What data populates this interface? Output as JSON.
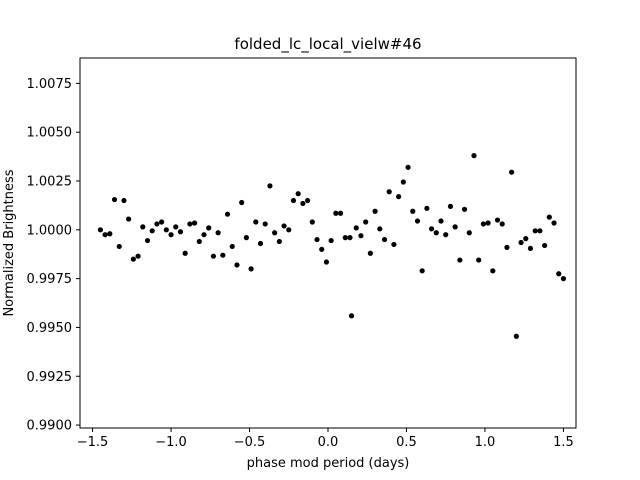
{
  "chart_data": {
    "type": "scatter",
    "title": "folded_lc_local_vielw#46",
    "xlabel": "phase mod period (days)",
    "ylabel": "Normalized Brightness",
    "xlim": [
      -1.58,
      1.58
    ],
    "ylim": [
      0.98985,
      1.0088
    ],
    "xticks": [
      -1.5,
      -1.0,
      -0.5,
      0.0,
      0.5,
      1.0,
      1.5
    ],
    "xtick_labels": [
      "−1.5",
      "−1.0",
      "−0.5",
      "0.0",
      "0.5",
      "1.0",
      "1.5"
    ],
    "yticks": [
      0.99,
      0.9925,
      0.995,
      0.9975,
      1.0,
      1.0025,
      1.005,
      1.0075
    ],
    "ytick_labels": [
      "0.9900",
      "0.9925",
      "0.9950",
      "0.9975",
      "1.0000",
      "1.0025",
      "1.0050",
      "1.0075"
    ],
    "grid": false,
    "marker_color": "#000000",
    "series": [
      {
        "points": [
          [
            -1.45,
            1.0
          ],
          [
            -1.42,
            0.99975
          ],
          [
            -1.39,
            0.9998
          ],
          [
            -1.36,
            1.00155
          ],
          [
            -1.33,
            0.99915
          ],
          [
            -1.3,
            1.0015
          ],
          [
            -1.27,
            1.00055
          ],
          [
            -1.24,
            0.9985
          ],
          [
            -1.21,
            0.99865
          ],
          [
            -1.18,
            1.00015
          ],
          [
            -1.15,
            0.99945
          ],
          [
            -1.12,
            0.99995
          ],
          [
            -1.09,
            1.0003
          ],
          [
            -1.06,
            1.0004
          ],
          [
            -1.03,
            1.0
          ],
          [
            -1.0,
            0.99975
          ],
          [
            -0.97,
            1.00015
          ],
          [
            -0.94,
            0.9999
          ],
          [
            -0.91,
            0.9988
          ],
          [
            -0.88,
            1.0003
          ],
          [
            -0.85,
            1.00035
          ],
          [
            -0.82,
            0.9994
          ],
          [
            -0.79,
            0.99975
          ],
          [
            -0.76,
            1.0001
          ],
          [
            -0.73,
            0.99865
          ],
          [
            -0.7,
            0.99985
          ],
          [
            -0.67,
            0.9987
          ],
          [
            -0.64,
            1.0008
          ],
          [
            -0.61,
            0.99915
          ],
          [
            -0.58,
            0.9982
          ],
          [
            -0.55,
            1.0014
          ],
          [
            -0.52,
            0.9996
          ],
          [
            -0.49,
            0.998
          ],
          [
            -0.46,
            1.0004
          ],
          [
            -0.43,
            0.9993
          ],
          [
            -0.4,
            1.0003
          ],
          [
            -0.37,
            1.00225
          ],
          [
            -0.34,
            0.99985
          ],
          [
            -0.31,
            0.9994
          ],
          [
            -0.28,
            1.0002
          ],
          [
            -0.25,
            1.0
          ],
          [
            -0.22,
            1.0015
          ],
          [
            -0.19,
            1.00185
          ],
          [
            -0.16,
            1.00135
          ],
          [
            -0.13,
            1.0015
          ],
          [
            -0.1,
            1.0004
          ],
          [
            -0.07,
            0.9995
          ],
          [
            -0.04,
            0.999
          ],
          [
            -0.01,
            0.99835
          ],
          [
            0.02,
            0.99945
          ],
          [
            0.05,
            1.00085
          ],
          [
            0.08,
            1.00085
          ],
          [
            0.11,
            0.9996
          ],
          [
            0.14,
            0.9996
          ],
          [
            0.15,
            0.9956
          ],
          [
            0.18,
            1.0001
          ],
          [
            0.21,
            0.9997
          ],
          [
            0.24,
            1.0004
          ],
          [
            0.27,
            0.9988
          ],
          [
            0.3,
            1.00095
          ],
          [
            0.33,
            1.00005
          ],
          [
            0.36,
            0.9995
          ],
          [
            0.39,
            1.00195
          ],
          [
            0.42,
            0.99925
          ],
          [
            0.45,
            1.0017
          ],
          [
            0.48,
            1.00245
          ],
          [
            0.51,
            1.0032
          ],
          [
            0.54,
            1.00095
          ],
          [
            0.57,
            1.00045
          ],
          [
            0.6,
            0.9979
          ],
          [
            0.63,
            1.0011
          ],
          [
            0.66,
            1.00005
          ],
          [
            0.69,
            0.99985
          ],
          [
            0.72,
            1.00045
          ],
          [
            0.75,
            0.99975
          ],
          [
            0.78,
            1.0012
          ],
          [
            0.81,
            1.00015
          ],
          [
            0.84,
            0.99845
          ],
          [
            0.87,
            1.00105
          ],
          [
            0.9,
            0.99985
          ],
          [
            0.93,
            1.0038
          ],
          [
            0.96,
            0.99845
          ],
          [
            0.99,
            1.0003
          ],
          [
            1.02,
            1.00035
          ],
          [
            1.05,
            0.9979
          ],
          [
            1.08,
            1.0005
          ],
          [
            1.11,
            1.0003
          ],
          [
            1.14,
            0.9991
          ],
          [
            1.17,
            1.00295
          ],
          [
            1.2,
            0.99455
          ],
          [
            1.23,
            0.99935
          ],
          [
            1.26,
            0.99955
          ],
          [
            1.29,
            0.99905
          ],
          [
            1.32,
            0.99995
          ],
          [
            1.35,
            0.99995
          ],
          [
            1.38,
            0.9992
          ],
          [
            1.41,
            1.00065
          ],
          [
            1.44,
            1.00035
          ],
          [
            1.47,
            0.99775
          ],
          [
            1.5,
            0.9975
          ]
        ]
      }
    ]
  }
}
